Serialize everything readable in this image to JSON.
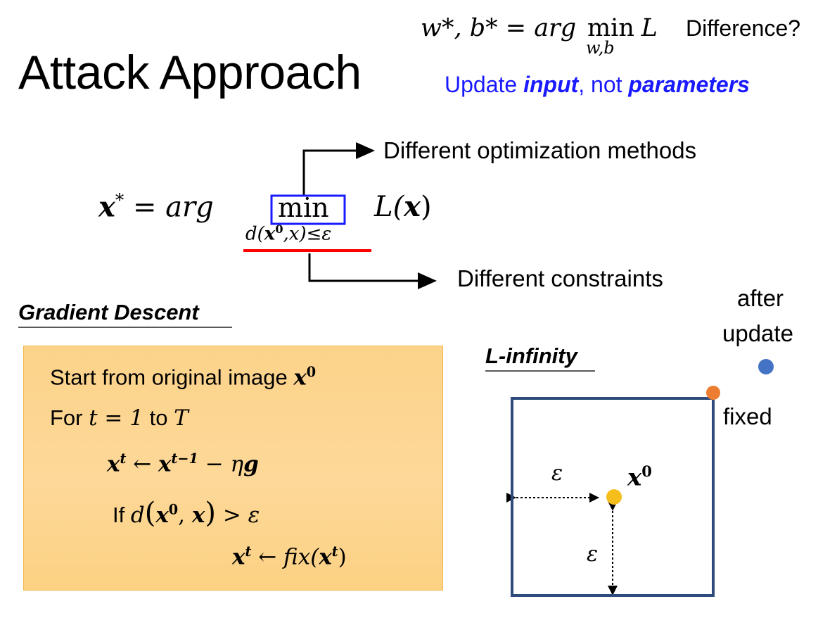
{
  "slide": {
    "title": "Attack Approach",
    "top_formula": {
      "lhs": "w*, b* = arg",
      "op": "min",
      "sub": "w,b",
      "rhs": "L"
    },
    "difference_label": "Difference?",
    "update_note": {
      "prefix": "Update ",
      "input": "input",
      "middle": ", not ",
      "parameters": "parameters"
    },
    "main_formula": {
      "lhs": "x",
      "star": "*",
      "eq": " = arg",
      "op": "min",
      "constraint_d": "d(",
      "constraint_x0": "x",
      "constraint_sup": "0",
      "constraint_rest": ",x)≤ε",
      "rhs_L": "L(",
      "rhs_x": "x",
      "rhs_close": ")"
    },
    "annotation_methods": "Different optimization methods",
    "annotation_constraints": "Different constraints",
    "section_gradient": "Gradient Descent",
    "algorithm": {
      "line1_text": "Start from original image ",
      "line1_var": "x",
      "line1_sup": "0",
      "line2_pre": "For ",
      "line2_math": "t = 1",
      "line2_mid": " to ",
      "line2_T": "T",
      "line3_lhs": "x",
      "line3_lsup": "t",
      "line3_arrow": " ← ",
      "line3_x": "x",
      "line3_sup": "t−1",
      "line3_rest": " − η",
      "line3_g": "g",
      "line4_if": "If ",
      "line4_d": "d",
      "line4_open": "(",
      "line4_x0": "x",
      "line4_sup": "0",
      "line4_comma": ", ",
      "line4_x": "x",
      "line4_close": ")",
      "line4_rest": " > ε",
      "line5_lhs": "x",
      "line5_sup": "t",
      "line5_arrow": " ← ",
      "line5_fix": "fix(",
      "line5_x": "x",
      "line5_xsup": "t",
      "line5_close": ")"
    },
    "section_linf": "L-infinity",
    "diagram": {
      "after_update_line1": "after",
      "after_update_line2": "update",
      "fixed_label": "fixed",
      "x0_var": "x",
      "x0_sup": "0",
      "eps_h": "ε",
      "eps_v": "ε",
      "colors": {
        "box": "#2f4b7c",
        "center_dot": "#f5be1a",
        "fixed_dot": "#ed7d31",
        "after_dot": "#4472c4"
      }
    },
    "colors": {
      "highlight_blue": "#1a1aff",
      "min_box": "#1a1aff",
      "underline_red": "#ff0000",
      "algo_fill": "#fdd590"
    }
  }
}
